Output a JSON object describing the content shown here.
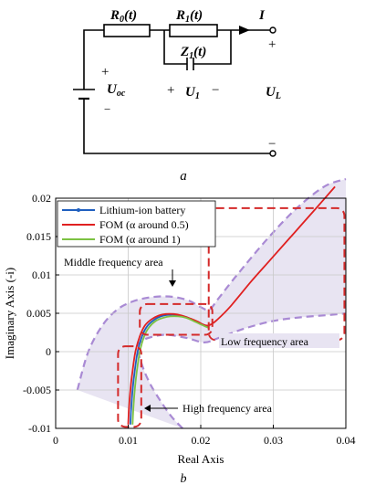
{
  "circuit": {
    "r0": {
      "base": "R",
      "sub": "0",
      "arg": "(t)"
    },
    "r1": {
      "base": "R",
      "sub": "1",
      "arg": "(t)"
    },
    "z1": {
      "base": "Z",
      "sub": "1",
      "arg": "(t)"
    },
    "current": "I",
    "uoc": {
      "base": "U",
      "sub": "oc"
    },
    "u1": {
      "base": "U",
      "sub": "1"
    },
    "ul": {
      "base": "U",
      "sub": "L"
    },
    "plus": "+",
    "minus": "−",
    "caption": "a"
  },
  "chart": {
    "caption": "b",
    "xlabel": "Real Axis",
    "ylabel": "Imaginary Axis (-i)",
    "annotations": {
      "middle": "Middle frequency area",
      "low": "Low frequency area",
      "high": "High frequency area"
    }
  },
  "chart_data": {
    "type": "line",
    "title": "",
    "xlabel": "Real Axis",
    "ylabel": "Imaginary Axis (-i)",
    "xlim": [
      0,
      0.04
    ],
    "ylim": [
      -0.01,
      0.02
    ],
    "xticks": [
      "0",
      "0.01",
      "0.02",
      "0.03",
      "0.04"
    ],
    "yticks": [
      "-0.01",
      "-0.005",
      "0",
      "0.005",
      "0.01",
      "0.015",
      "0.02"
    ],
    "grid": true,
    "legend_position": "top-left",
    "series": [
      {
        "name": "Lithium-ion battery",
        "color": "#1f5fbf",
        "x": [
          0.0103,
          0.0104,
          0.0106,
          0.0109,
          0.0113,
          0.0119,
          0.0126,
          0.0135,
          0.0145,
          0.0155,
          0.0166,
          0.0177,
          0.0188,
          0.0197,
          0.0204,
          0.021
        ],
        "y": [
          -0.0095,
          -0.0075,
          -0.005,
          -0.0025,
          0.0,
          0.002,
          0.0033,
          0.0041,
          0.0046,
          0.0048,
          0.0048,
          0.0046,
          0.0042,
          0.0038,
          0.0035,
          0.0033
        ]
      },
      {
        "name": "FOM (α around 0.5)",
        "color": "#e02020",
        "x": [
          0.01,
          0.0101,
          0.0103,
          0.0106,
          0.011,
          0.0116,
          0.0123,
          0.0132,
          0.0142,
          0.0152,
          0.0163,
          0.0174,
          0.0186,
          0.0196,
          0.0204,
          0.021,
          0.0215,
          0.0222,
          0.024,
          0.027,
          0.03,
          0.033,
          0.036,
          0.0385
        ],
        "y": [
          -0.0095,
          -0.0075,
          -0.005,
          -0.0025,
          0.0,
          0.002,
          0.0034,
          0.0042,
          0.0047,
          0.0049,
          0.0049,
          0.0047,
          0.0043,
          0.0039,
          0.0035,
          0.0034,
          0.0036,
          0.0041,
          0.0058,
          0.0092,
          0.0124,
          0.0156,
          0.0188,
          0.0215
        ]
      },
      {
        "name": "FOM (α around 1)",
        "color": "#7cc242",
        "x": [
          0.0106,
          0.0107,
          0.0109,
          0.0112,
          0.0116,
          0.0122,
          0.0129,
          0.0138,
          0.0148,
          0.0158,
          0.0169,
          0.018,
          0.019,
          0.0199,
          0.0206,
          0.0211
        ],
        "y": [
          -0.0095,
          -0.0075,
          -0.005,
          -0.0025,
          0.0,
          0.002,
          0.0032,
          0.004,
          0.0044,
          0.0046,
          0.0046,
          0.0044,
          0.004,
          0.0036,
          0.0033,
          0.0031
        ]
      }
    ],
    "envelope": {
      "color": "#a98ad4",
      "fill": "#e8e4f2",
      "upper": {
        "x": [
          0.003,
          0.0045,
          0.0065,
          0.0085,
          0.0105,
          0.0125,
          0.0145,
          0.0165,
          0.0185,
          0.02,
          0.0212,
          0.0225,
          0.025,
          0.029,
          0.033,
          0.037,
          0.04
        ],
        "y": [
          -0.005,
          0.0,
          0.0035,
          0.0055,
          0.0065,
          0.007,
          0.0072,
          0.0071,
          0.0066,
          0.0058,
          0.0055,
          0.007,
          0.01,
          0.0145,
          0.0185,
          0.0215,
          0.0225
        ]
      },
      "lower": {
        "x": [
          0.0175,
          0.016,
          0.0145,
          0.0132,
          0.0122,
          0.0115,
          0.0112,
          0.0114,
          0.0125,
          0.015,
          0.018,
          0.0205,
          0.0225,
          0.026,
          0.03,
          0.034,
          0.038,
          0.04
        ],
        "y": [
          -0.01,
          -0.0085,
          -0.0065,
          -0.0045,
          -0.0025,
          -0.0005,
          0.0005,
          0.001,
          0.0017,
          0.0022,
          0.0018,
          0.0012,
          0.0018,
          0.003,
          0.004,
          0.0045,
          0.0048,
          0.005
        ]
      }
    },
    "region_boxes": [
      {
        "name": "high",
        "x0": 0.0086,
        "x1": 0.0118,
        "y0": -0.0098,
        "y1": 0.0007
      },
      {
        "name": "middle",
        "x0": 0.0116,
        "x1": 0.0216,
        "y0": 0.0022,
        "y1": 0.0062
      },
      {
        "name": "low",
        "x0": 0.0211,
        "x1": 0.0398,
        "y0": 0.0015,
        "y1": 0.0187
      }
    ]
  }
}
